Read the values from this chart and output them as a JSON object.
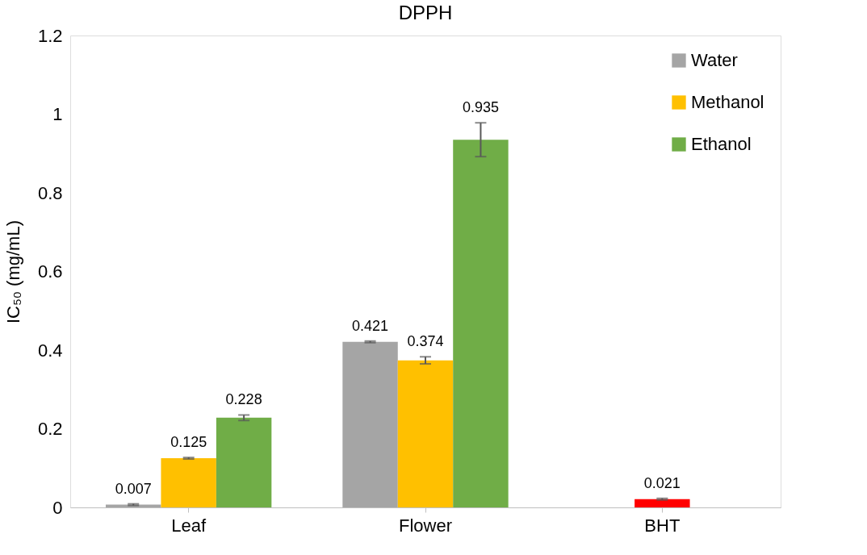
{
  "chart_data": {
    "type": "bar",
    "title": "DPPH",
    "ylabel": "IC₅₀ (mg/mL)",
    "categories": [
      "Leaf",
      "Flower",
      "BHT"
    ],
    "series": [
      {
        "name": "Water",
        "color": "#a5a5a5",
        "values": [
          0.007,
          0.421,
          null
        ],
        "errors": [
          0.002,
          0.002,
          null
        ]
      },
      {
        "name": "Methanol",
        "color": "#ffc000",
        "colors": [
          "#ffc000",
          "#ffc000",
          "#ff0000"
        ],
        "values": [
          0.125,
          0.374,
          0.021
        ],
        "errors": [
          0.002,
          0.009,
          0.002
        ]
      },
      {
        "name": "Ethanol",
        "color": "#70ad47",
        "values": [
          0.228,
          0.935,
          null
        ],
        "errors": [
          0.007,
          0.043,
          null
        ]
      }
    ],
    "ylim": [
      0,
      1.2
    ],
    "yticks": [
      0,
      0.2,
      0.4,
      0.6,
      0.8,
      1,
      1.2
    ],
    "data_labels": true,
    "legend": "top right",
    "grid": false
  }
}
